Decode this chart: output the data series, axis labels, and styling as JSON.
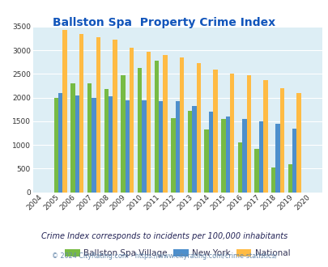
{
  "title": "Ballston Spa  Property Crime Index",
  "years": [
    2004,
    2005,
    2006,
    2007,
    2008,
    2009,
    2010,
    2011,
    2012,
    2013,
    2014,
    2015,
    2016,
    2017,
    2018,
    2019,
    2020
  ],
  "ballston_spa": [
    0,
    2000,
    2300,
    2300,
    2175,
    2475,
    2625,
    2775,
    1575,
    1725,
    1325,
    1550,
    1050,
    925,
    525,
    600,
    0
  ],
  "new_york": [
    0,
    2100,
    2050,
    2000,
    2025,
    1950,
    1950,
    1925,
    1925,
    1825,
    1700,
    1600,
    1550,
    1500,
    1450,
    1350,
    0
  ],
  "national": [
    0,
    3425,
    3350,
    3275,
    3225,
    3050,
    2975,
    2900,
    2850,
    2725,
    2600,
    2500,
    2475,
    2375,
    2200,
    2100,
    0
  ],
  "bar_colors": {
    "ballston_spa": "#77bb44",
    "new_york": "#4d8fcc",
    "national": "#ffbb44"
  },
  "bg_color": "#ddeef5",
  "ylim": [
    0,
    3500
  ],
  "yticks": [
    0,
    500,
    1000,
    1500,
    2000,
    2500,
    3000,
    3500
  ],
  "subtitle": "Crime Index corresponds to incidents per 100,000 inhabitants",
  "footer": "© 2024 CityRating.com - https://www.cityrating.com/crime-statistics/",
  "title_color": "#1155bb",
  "subtitle_color": "#222255",
  "footer_color": "#6688aa",
  "legend_labels": [
    "Ballston Spa Village",
    "New York",
    "National"
  ]
}
